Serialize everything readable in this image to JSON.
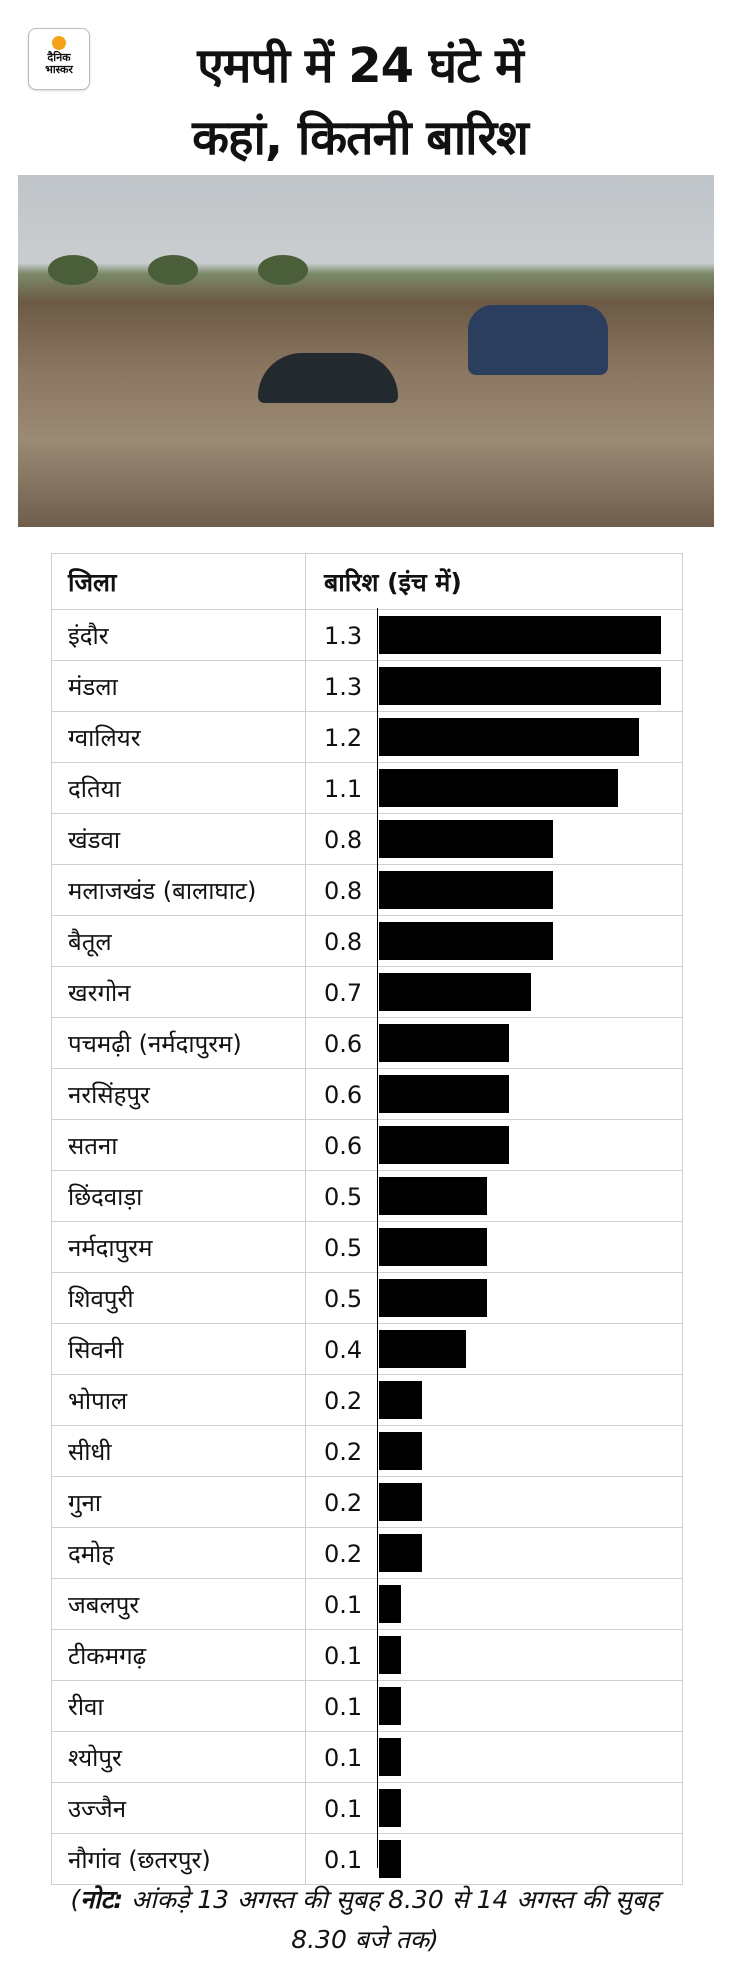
{
  "logo": {
    "line1": "दैनिक",
    "line2": "भास्कर",
    "accent": "#f7a21b"
  },
  "title": {
    "line1": "एमपी में 24 घंटे में",
    "line2": "कहां, कितनी बारिश"
  },
  "chart_data": {
    "type": "bar",
    "orientation": "horizontal",
    "title": "एमपी में 24 घंटे में कहां, कितनी बारिश",
    "headers": [
      "जिला",
      "बारिश (इंच में)"
    ],
    "categories": [
      "इंदौर",
      "मंडला",
      "ग्वालियर",
      "दतिया",
      "खंडवा",
      "मलाजखंड (बालाघाट)",
      "बैतूल",
      "खरगोन",
      "पचमढ़ी (नर्मदापुरम)",
      "नरसिंहपुर",
      "सतना",
      "छिंदवाड़ा",
      "नर्मदापुरम",
      "शिवपुरी",
      "सिवनी",
      "भोपाल",
      "सीधी",
      "गुना",
      "दमोह",
      "जबलपुर",
      "टीकमगढ़",
      "रीवा",
      "श्योपुर",
      "उज्जैन",
      "नौगांव (छतरपुर)"
    ],
    "values": [
      1.3,
      1.3,
      1.2,
      1.1,
      0.8,
      0.8,
      0.8,
      0.7,
      0.6,
      0.6,
      0.6,
      0.5,
      0.5,
      0.5,
      0.4,
      0.2,
      0.2,
      0.2,
      0.2,
      0.1,
      0.1,
      0.1,
      0.1,
      0.1,
      0.1
    ],
    "value_labels": [
      "1.3",
      "1.3",
      "1.2",
      "1.1",
      "0.8",
      "0.8",
      "0.8",
      "0.7",
      "0.6",
      "0.6",
      "0.6",
      "0.5",
      "0.5",
      "0.5",
      "0.4",
      "0.2",
      "0.2",
      "0.2",
      "0.2",
      "0.1",
      "0.1",
      "0.1",
      "0.1",
      "0.1",
      "0.1"
    ],
    "xlim": [
      0,
      1.3
    ],
    "bar_color": "#000000"
  },
  "note": {
    "label": "नोट:",
    "text": " आंकड़े 13 अगस्त की सुबह 8.30 से 14 अगस्त की सुबह 8.30 बजे तक"
  }
}
